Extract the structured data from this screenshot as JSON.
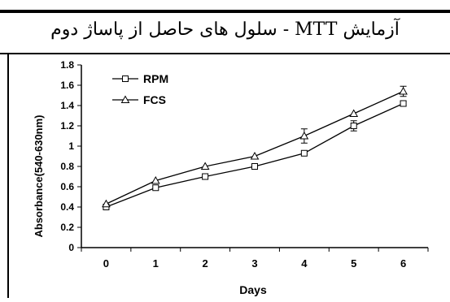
{
  "header": {
    "title": "آزمایش MTT - سلول های حاصل از پاساژ دوم"
  },
  "chart_data": {
    "type": "line",
    "title": "",
    "xlabel": "Days",
    "ylabel": "Absorbance(540-630nm)",
    "x": [
      0,
      1,
      2,
      3,
      4,
      5,
      6
    ],
    "x_ticks": [
      "0",
      "1",
      "2",
      "3",
      "4",
      "5",
      "6"
    ],
    "ylim": [
      0,
      1.8
    ],
    "y_ticks": [
      "0",
      "0.2",
      "0.4",
      "0.6",
      "0.8",
      "1",
      "1.2",
      "1.4",
      "1.6",
      "1.8"
    ],
    "grid": false,
    "legend_position": "top-left",
    "series": [
      {
        "name": "RPM",
        "marker": "square",
        "color": "#000000",
        "values": [
          0.4,
          0.59,
          0.7,
          0.8,
          0.93,
          1.2,
          1.42
        ],
        "errors": [
          0,
          0,
          0,
          0,
          0,
          0.05,
          0.02
        ]
      },
      {
        "name": "FCS",
        "marker": "triangle",
        "color": "#000000",
        "values": [
          0.43,
          0.66,
          0.8,
          0.9,
          1.1,
          1.32,
          1.54
        ],
        "errors": [
          0,
          0,
          0,
          0,
          0.07,
          0,
          0.05
        ]
      }
    ]
  }
}
